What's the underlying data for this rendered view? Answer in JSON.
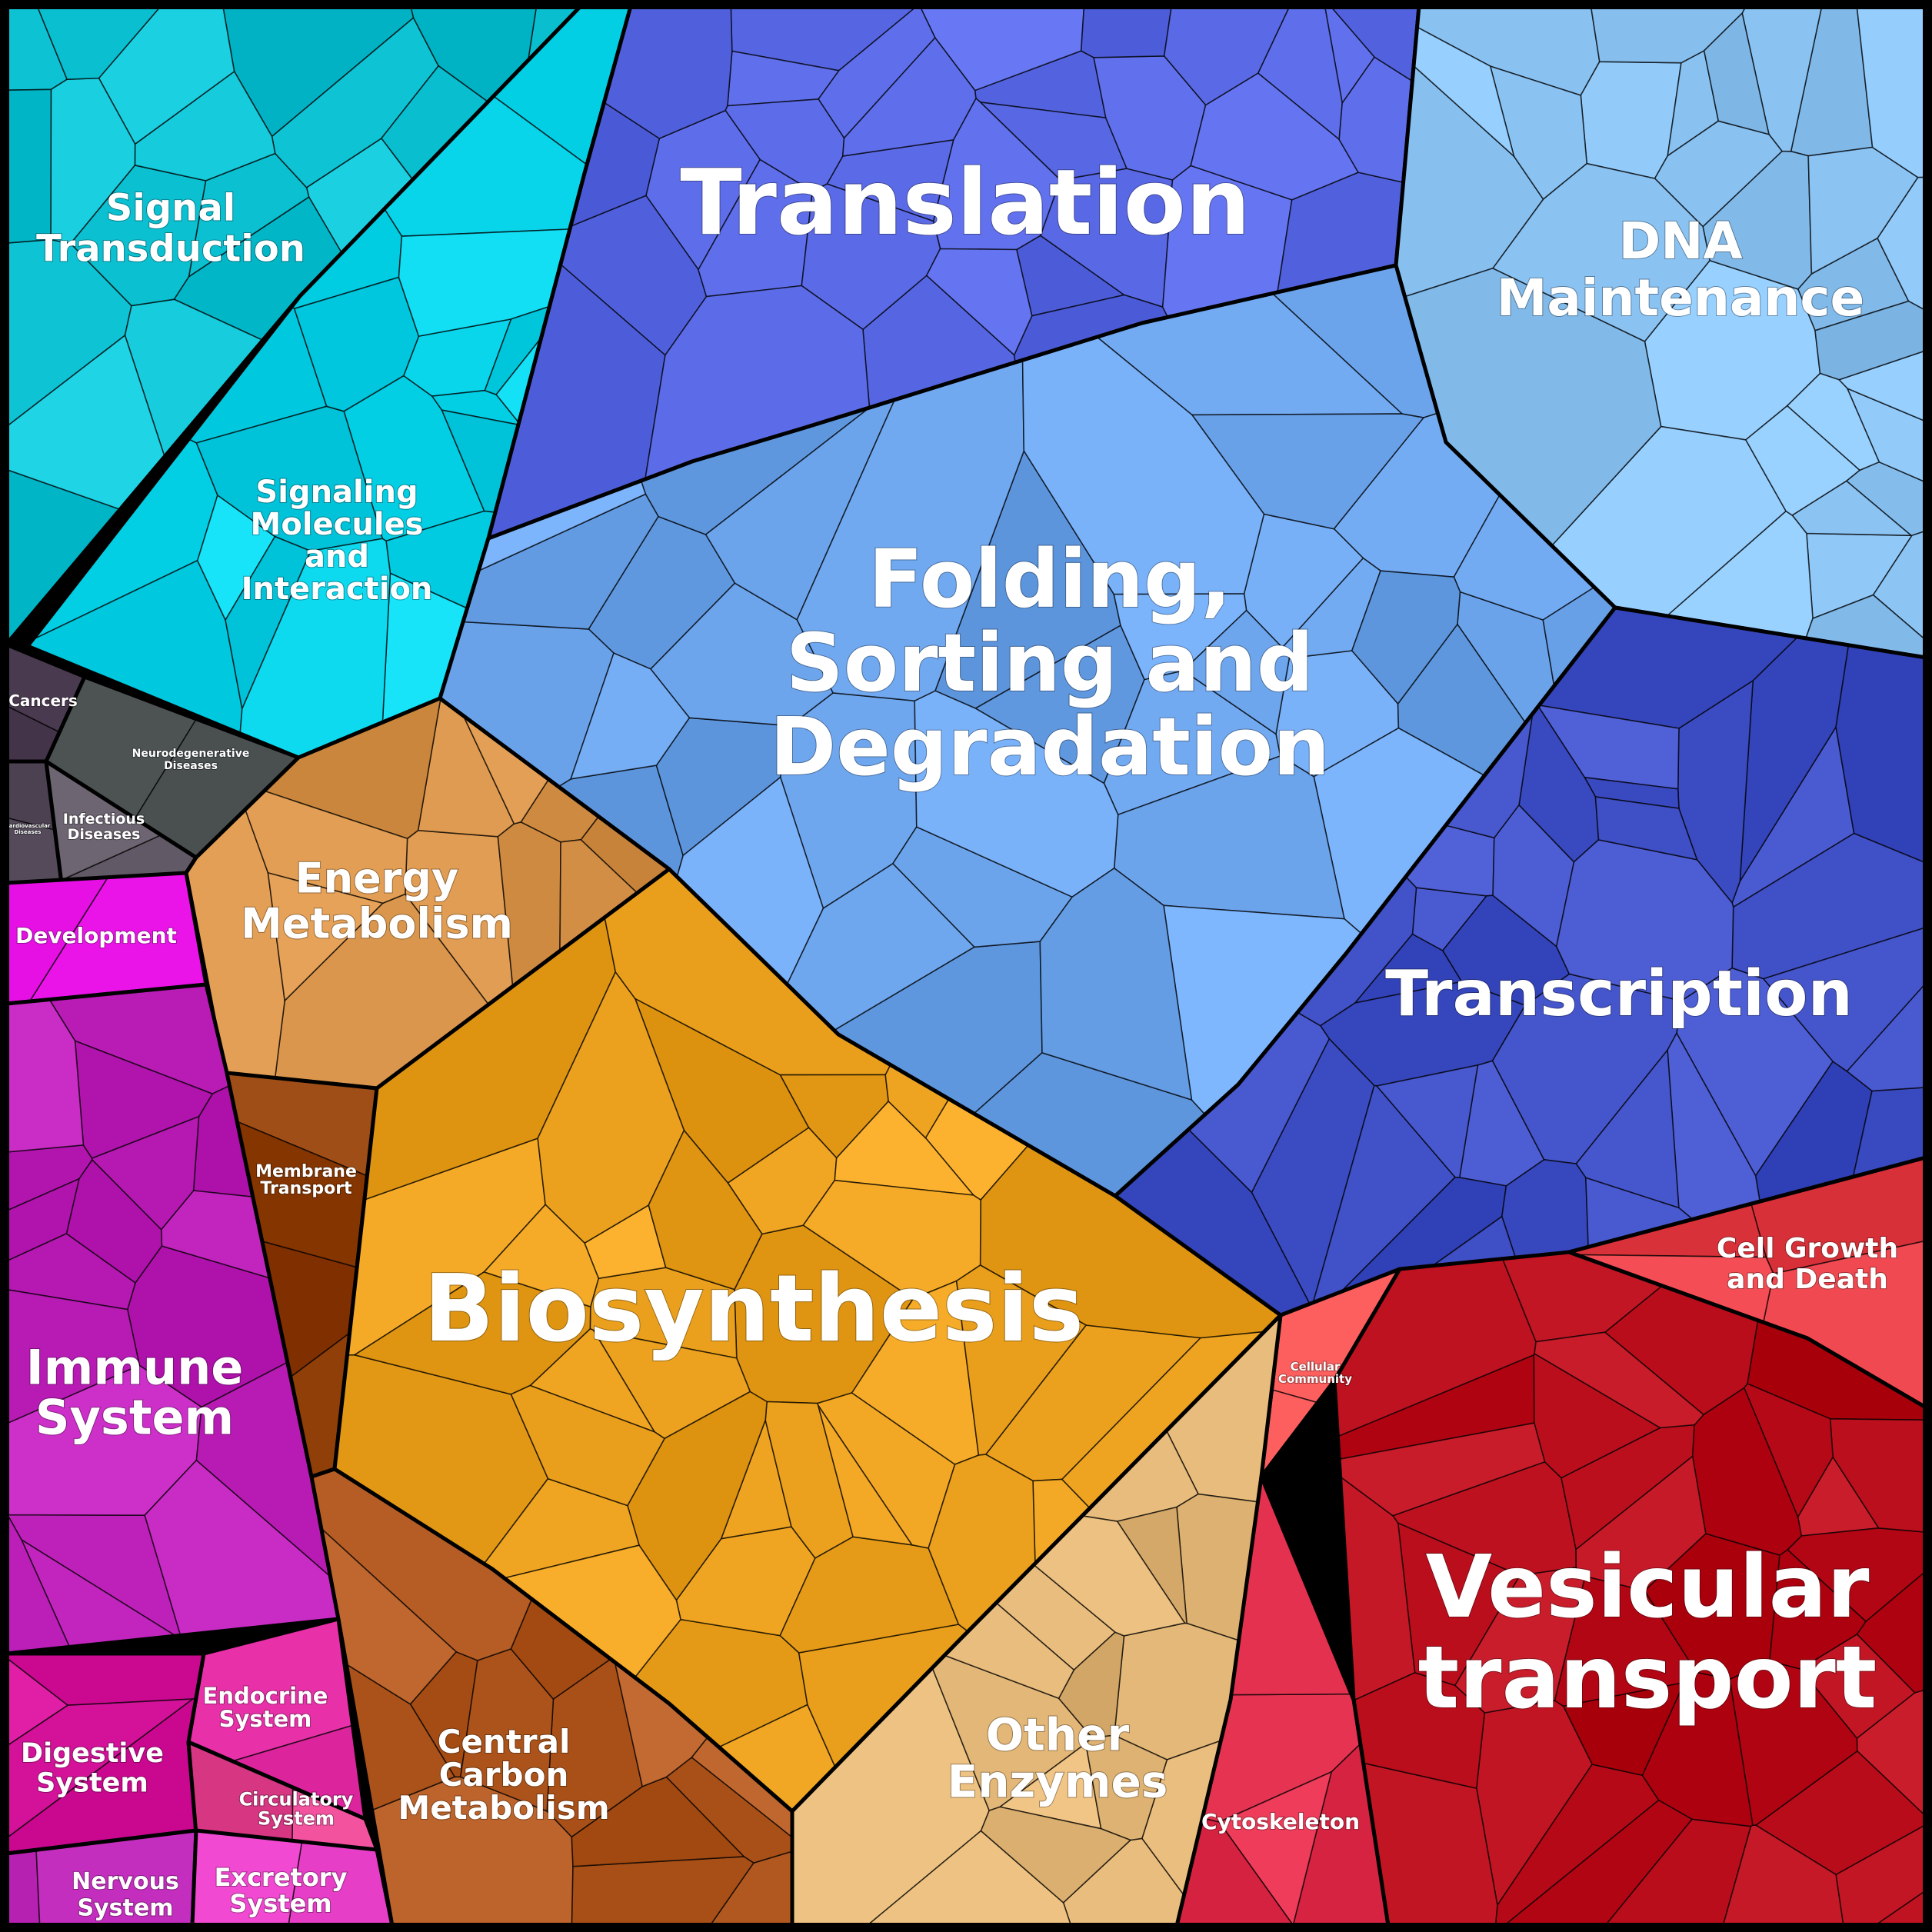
{
  "categories": [
    {
      "id": "translation",
      "lines": [
        "Translation"
      ],
      "color": "#5a6ae6"
    },
    {
      "id": "dna-maintenance",
      "lines": [
        "DNA",
        "Maintenance"
      ],
      "color": "#8cc4f4"
    },
    {
      "id": "signal-transduction",
      "lines": [
        "Signal",
        "Transduction"
      ],
      "color": "#0ec3d4"
    },
    {
      "id": "signaling-molecules",
      "lines": [
        "Signaling",
        "Molecules",
        "and",
        "Interaction"
      ],
      "color": "#06d2e8"
    },
    {
      "id": "folding-sorting",
      "lines": [
        "Folding,",
        "Sorting and",
        "Degradation"
      ],
      "color": "#6ea6ee"
    },
    {
      "id": "transcription",
      "lines": [
        "Transcription"
      ],
      "color": "#4050c6"
    },
    {
      "id": "cancers",
      "lines": [
        "Cancers"
      ],
      "color": "#3a2a40"
    },
    {
      "id": "neurodegenerative",
      "lines": [
        "Neurodegenerative",
        "Diseases"
      ],
      "color": "#3e4444"
    },
    {
      "id": "cardiovascular",
      "lines": [
        "Cardiovascular",
        "Diseases"
      ],
      "color": "#5a5060"
    },
    {
      "id": "infectious",
      "lines": [
        "Infectious",
        "Diseases"
      ],
      "color": "#6a626e"
    },
    {
      "id": "energy-metabolism",
      "lines": [
        "Energy",
        "Metabolism"
      ],
      "color": "#d8944a"
    },
    {
      "id": "development",
      "lines": [
        "Development"
      ],
      "color": "#f41ef2"
    },
    {
      "id": "immune-system",
      "lines": [
        "Immune",
        "System"
      ],
      "color": "#bc1eb8"
    },
    {
      "id": "membrane-transport",
      "lines": [
        "Membrane",
        "Transport"
      ],
      "color": "#8e3e06"
    },
    {
      "id": "biosynthesis",
      "lines": [
        "Biosynthesis"
      ],
      "color": "#eca21e"
    },
    {
      "id": "cell-growth-death",
      "lines": [
        "Cell Growth",
        "and Death"
      ],
      "color": "#e63e46"
    },
    {
      "id": "cellular-community",
      "lines": [
        "Cellular",
        "Community"
      ],
      "color": "#f05252"
    },
    {
      "id": "vesicular-transport",
      "lines": [
        "Vesicular",
        "transport"
      ],
      "color": "#b80c1a"
    },
    {
      "id": "other-enzymes",
      "lines": [
        "Other",
        "Enzymes"
      ],
      "color": "#e2b676"
    },
    {
      "id": "central-carbon",
      "lines": [
        "Central",
        "Carbon",
        "Metabolism"
      ],
      "color": "#b25a22"
    },
    {
      "id": "endocrine",
      "lines": [
        "Endocrine",
        "System"
      ],
      "color": "#e62ea6"
    },
    {
      "id": "digestive",
      "lines": [
        "Digestive",
        "System"
      ],
      "color": "#d8169e"
    },
    {
      "id": "circulatory",
      "lines": [
        "Circulatory",
        "System"
      ],
      "color": "#e2428e"
    },
    {
      "id": "nervous",
      "lines": [
        "Nervous",
        "System"
      ],
      "color": "#c42ebe"
    },
    {
      "id": "excretory",
      "lines": [
        "Excretory",
        "System"
      ],
      "color": "#f24ad2"
    },
    {
      "id": "cytoskeleton",
      "lines": [
        "Cytoskeleton"
      ],
      "color": "#e2304e"
    }
  ]
}
